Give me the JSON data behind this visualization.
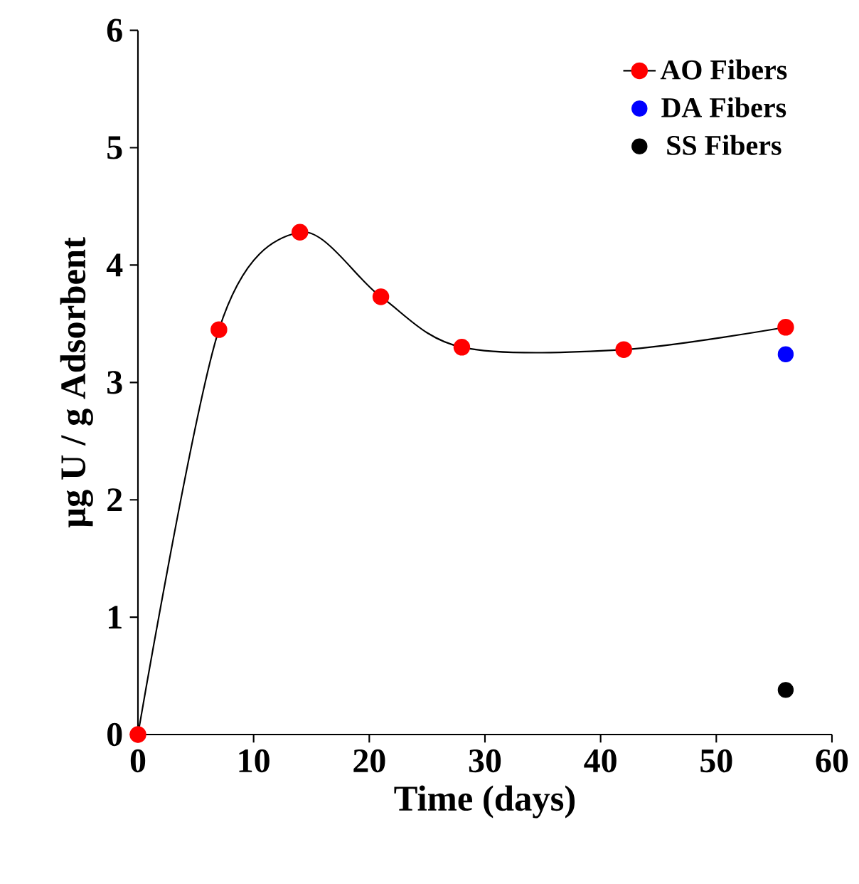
{
  "chart_data": {
    "type": "line",
    "xlabel": "Time (days)",
    "ylabel": "μg U / g Adsorbent",
    "xlim": [
      0,
      60
    ],
    "ylim": [
      0,
      6
    ],
    "xticks": [
      0,
      10,
      20,
      30,
      40,
      50,
      60
    ],
    "yticks": [
      0,
      1,
      2,
      3,
      4,
      5,
      6
    ],
    "grid": false,
    "legend": "top right",
    "marker": "circle",
    "series": [
      {
        "name": "AO Fibers",
        "color": "#ff0000",
        "x": [
          0,
          7,
          14,
          21,
          28,
          42,
          56
        ],
        "values": [
          0,
          3.45,
          4.28,
          3.73,
          3.3,
          3.28,
          3.47
        ]
      },
      {
        "name": "DA Fibers",
        "type": "scatter",
        "color": "#0000ff",
        "x": [
          56
        ],
        "values": [
          3.24
        ]
      },
      {
        "name": "SS Fibers",
        "type": "scatter",
        "color": "#000000",
        "x": [
          56
        ],
        "values": [
          0.38
        ]
      }
    ]
  }
}
